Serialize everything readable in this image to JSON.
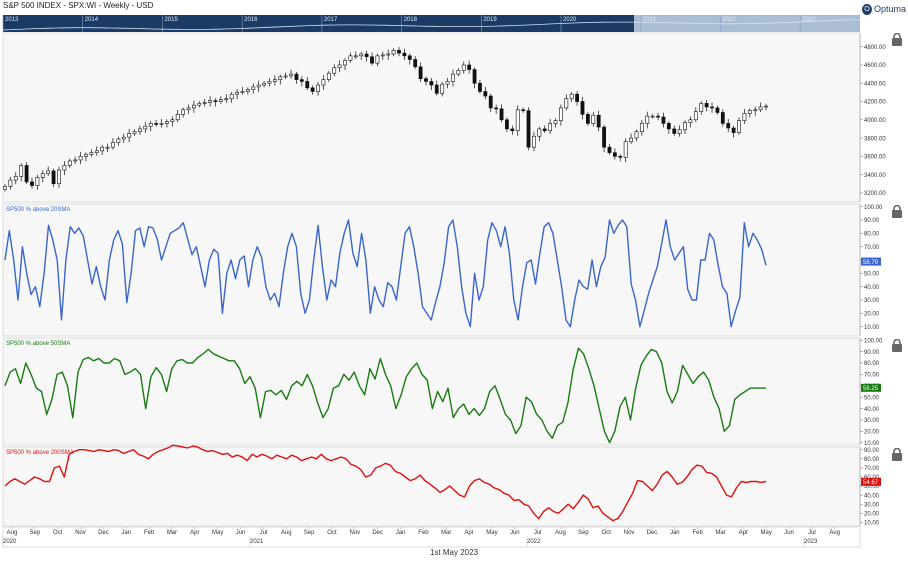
{
  "header": {
    "title": "S&P 500 INDEX - SPX:WI - Weekly - USD",
    "logo_text": "Optuma"
  },
  "overview": {
    "years": [
      "2013",
      "2014",
      "2015",
      "2016",
      "2017",
      "2018",
      "2019",
      "2020",
      "2021",
      "2022",
      "2023"
    ]
  },
  "footer": {
    "date_label": "1st May 2023"
  },
  "colors": {
    "ma20": "#3a66c9",
    "ma50": "#1a7a12",
    "ma200": "#e01010",
    "overview_bg": "#1b3a66",
    "panel_bg": "#f7f7f7"
  },
  "chart_data": [
    {
      "type": "candlestick",
      "name": "price-panel",
      "title": "S&P 500 INDEX - SPX:WI - Weekly - USD",
      "ylim": [
        3100,
        4950
      ],
      "yticks": [
        "4800.00",
        "4600.00",
        "4400.00",
        "4200.00",
        "4000.00",
        "3800.00",
        "3600.00",
        "3400.00",
        "3200.00"
      ],
      "ytick_values": [
        4800,
        4600,
        4400,
        4200,
        4000,
        3800,
        3600,
        3400,
        3200
      ],
      "closes": [
        3270,
        3340,
        3380,
        3500,
        3320,
        3280,
        3370,
        3410,
        3440,
        3300,
        3450,
        3500,
        3550,
        3560,
        3600,
        3620,
        3640,
        3660,
        3700,
        3700,
        3750,
        3790,
        3810,
        3850,
        3870,
        3900,
        3930,
        3960,
        3950,
        3960,
        3980,
        4000,
        4060,
        4110,
        4130,
        4160,
        4180,
        4190,
        4210,
        4200,
        4220,
        4230,
        4280,
        4300,
        4310,
        4330,
        4360,
        4380,
        4400,
        4420,
        4440,
        4470,
        4480,
        4500,
        4440,
        4420,
        4350,
        4310,
        4380,
        4440,
        4510,
        4570,
        4600,
        4650,
        4700,
        4700,
        4720,
        4690,
        4620,
        4700,
        4710,
        4720,
        4760,
        4730,
        4700,
        4660,
        4580,
        4450,
        4420,
        4380,
        4290,
        4390,
        4420,
        4500,
        4540,
        4600,
        4550,
        4400,
        4310,
        4260,
        4130,
        4120,
        4000,
        3900,
        3880,
        4110,
        4100,
        3700,
        3820,
        3900,
        3880,
        3960,
        3990,
        4130,
        4230,
        4280,
        4200,
        4060,
        3960,
        4050,
        3920,
        3700,
        3640,
        3600,
        3590,
        3760,
        3800,
        3870,
        3960,
        4040,
        4040,
        4030,
        3960,
        3900,
        3850,
        3890,
        3970,
        4000,
        4090,
        4180,
        4140,
        4130,
        4080,
        3960,
        3910,
        3860,
        3990,
        4070,
        4100,
        4110,
        4140,
        4150
      ]
    },
    {
      "type": "line",
      "name": "ma20-panel",
      "series": [
        {
          "name": "SP500 % above 20SMA",
          "values": [
            60,
            82,
            60,
            30,
            70,
            50,
            34,
            40,
            25,
            50,
            86,
            75,
            60,
            15,
            60,
            85,
            80,
            84,
            78,
            60,
            42,
            55,
            40,
            30,
            60,
            75,
            82,
            72,
            28,
            50,
            82,
            84,
            70,
            85,
            84,
            76,
            60,
            70,
            80,
            82,
            84,
            88,
            76,
            64,
            70,
            55,
            40,
            60,
            68,
            65,
            20,
            50,
            60,
            46,
            60,
            63,
            40,
            60,
            70,
            62,
            40,
            30,
            35,
            25,
            50,
            70,
            80,
            70,
            35,
            20,
            30,
            60,
            86,
            55,
            30,
            45,
            40,
            65,
            80,
            90,
            65,
            55,
            80,
            60,
            20,
            40,
            30,
            25,
            43,
            40,
            30,
            55,
            80,
            85,
            70,
            50,
            25,
            20,
            15,
            28,
            40,
            58,
            85,
            90,
            70,
            40,
            20,
            10,
            50,
            30,
            40,
            75,
            88,
            82,
            70,
            85,
            65,
            30,
            15,
            40,
            58,
            60,
            42,
            65,
            85,
            88,
            80,
            60,
            40,
            15,
            10,
            30,
            45,
            40,
            38,
            60,
            40,
            55,
            62,
            90,
            80,
            86,
            90,
            85,
            42,
            30,
            10,
            22,
            35,
            45,
            55,
            72,
            90,
            70,
            60,
            65,
            70,
            38,
            30,
            30,
            60,
            60,
            80,
            75,
            56,
            40,
            35,
            10,
            22,
            32,
            88,
            70,
            80,
            75,
            68,
            56
          ]
        }
      ],
      "ylim": [
        3,
        102
      ],
      "yticks": [
        "100.00",
        "90.00",
        "80.00",
        "70.00",
        "60.00",
        "50.00",
        "40.00",
        "30.00",
        "20.00",
        "10.00"
      ],
      "ytick_values": [
        100,
        90,
        80,
        70,
        60,
        50,
        40,
        30,
        20,
        10
      ],
      "last_value": "58.79"
    },
    {
      "type": "line",
      "name": "ma50-panel",
      "series": [
        {
          "name": "SP500 % above 50SMA",
          "values": [
            60,
            72,
            75,
            62,
            80,
            70,
            58,
            55,
            35,
            48,
            70,
            72,
            60,
            32,
            72,
            83,
            85,
            82,
            84,
            80,
            80,
            84,
            82,
            70,
            72,
            75,
            70,
            40,
            68,
            76,
            70,
            55,
            75,
            82,
            83,
            80,
            80,
            85,
            88,
            92,
            88,
            86,
            84,
            82,
            82,
            75,
            62,
            68,
            58,
            32,
            55,
            56,
            52,
            56,
            48,
            60,
            64,
            60,
            70,
            60,
            45,
            32,
            40,
            58,
            60,
            70,
            65,
            72,
            60,
            52,
            75,
            66,
            84,
            70,
            60,
            40,
            52,
            68,
            75,
            80,
            70,
            65,
            40,
            55,
            46,
            58,
            32,
            40,
            44,
            35,
            40,
            34,
            40,
            55,
            60,
            48,
            35,
            30,
            18,
            25,
            50,
            46,
            35,
            30,
            20,
            14,
            25,
            28,
            45,
            74,
            93,
            88,
            75,
            60,
            40,
            20,
            10,
            20,
            42,
            50,
            30,
            58,
            78,
            86,
            92,
            90,
            80,
            55,
            45,
            55,
            78,
            70,
            62,
            68,
            72,
            65,
            50,
            40,
            20,
            25,
            48,
            52,
            55,
            58,
            58,
            58,
            58
          ]
        }
      ],
      "ylim": [
        8,
        102
      ],
      "yticks": [
        "100.00",
        "90.00",
        "80.00",
        "70.00",
        "60.00",
        "50.00",
        "40.00",
        "30.00",
        "20.00",
        "10.00"
      ],
      "ytick_values": [
        100,
        90,
        80,
        70,
        60,
        50,
        40,
        30,
        20,
        10
      ],
      "last_value": "58.25"
    },
    {
      "type": "line",
      "name": "ma200-panel",
      "series": [
        {
          "name": "SP500 % above 200SMA",
          "values": [
            50,
            55,
            58,
            55,
            52,
            56,
            60,
            58,
            55,
            55,
            70,
            72,
            60,
            85,
            88,
            90,
            90,
            89,
            88,
            90,
            89,
            88,
            90,
            89,
            86,
            88,
            90,
            85,
            83,
            80,
            85,
            88,
            90,
            92,
            95,
            94,
            93,
            92,
            94,
            93,
            90,
            88,
            89,
            87,
            85,
            86,
            82,
            84,
            82,
            78,
            85,
            82,
            85,
            83,
            80,
            84,
            82,
            80,
            84,
            82,
            78,
            80,
            82,
            80,
            85,
            80,
            78,
            80,
            82,
            80,
            74,
            72,
            68,
            60,
            62,
            70,
            72,
            75,
            73,
            66,
            64,
            60,
            56,
            58,
            62,
            56,
            52,
            48,
            43,
            46,
            50,
            45,
            40,
            38,
            50,
            56,
            58,
            54,
            52,
            48,
            46,
            42,
            40,
            34,
            35,
            30,
            28,
            20,
            14,
            22,
            26,
            22,
            20,
            25,
            30,
            25,
            32,
            40,
            36,
            26,
            28,
            20,
            16,
            12,
            14,
            22,
            32,
            42,
            56,
            55,
            50,
            45,
            52,
            62,
            66,
            60,
            52,
            54,
            60,
            68,
            73,
            72,
            65,
            64,
            60,
            50,
            40,
            38,
            48,
            55,
            54,
            55,
            55,
            54,
            55
          ]
        }
      ],
      "ylim": [
        6,
        93
      ],
      "yticks": [
        "90.00",
        "80.00",
        "70.00",
        "60.00",
        "50.00",
        "40.00",
        "30.00",
        "20.00",
        "10.00"
      ],
      "ytick_values": [
        90,
        80,
        70,
        60,
        50,
        40,
        30,
        20,
        10
      ],
      "last_value": "54.67"
    }
  ],
  "x_axis": {
    "months": [
      "Aug",
      "Sep",
      "Oct",
      "Nov",
      "Dec",
      "Jan",
      "Feb",
      "Mar",
      "Apr",
      "May",
      "Jun",
      "Jul",
      "Aug",
      "Sep",
      "Oct",
      "Nov",
      "Dec",
      "Jan",
      "Feb",
      "Mar",
      "Apr",
      "May",
      "Jun",
      "Jul",
      "Aug",
      "Sep",
      "Oct",
      "Nov",
      "Dec",
      "Jan",
      "Feb",
      "Mar",
      "Apr",
      "May",
      "Jun",
      "Jul",
      "Aug"
    ],
    "years": [
      "2020",
      "2021",
      "2022",
      "2023"
    ]
  }
}
